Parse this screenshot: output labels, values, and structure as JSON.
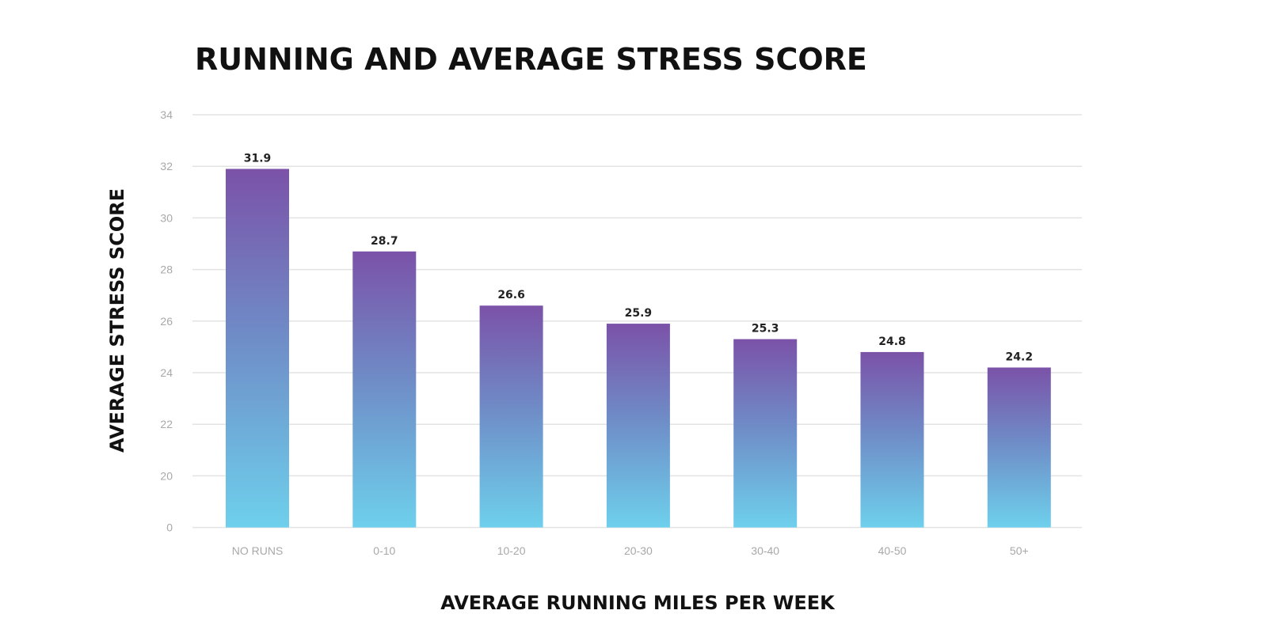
{
  "chart_data": {
    "type": "bar",
    "title": "RUNNING AND AVERAGE STRESS SCORE",
    "xlabel": "AVERAGE RUNNING MILES PER WEEK",
    "ylabel": "AVERAGE STRESS SCORE",
    "categories": [
      "NO RUNS",
      "0-10",
      "10-20",
      "20-30",
      "30-40",
      "40-50",
      "50+"
    ],
    "values": [
      31.9,
      28.7,
      26.6,
      25.9,
      25.3,
      24.8,
      24.2
    ],
    "value_labels": [
      "31.9",
      "28.7",
      "26.6",
      "25.9",
      "25.3",
      "24.8",
      "24.2"
    ],
    "y_ticks": [
      0,
      20,
      22,
      24,
      26,
      28,
      30,
      32,
      34
    ],
    "y_tick_labels": [
      "0",
      "20",
      "22",
      "24",
      "26",
      "28",
      "30",
      "32",
      "34"
    ],
    "ylim": [
      20,
      34
    ],
    "axis_break": "baseline labeled 0 placed one tick interval below 20",
    "grid": true,
    "legend": "none",
    "colors": {
      "bar_top": "#7b52a8",
      "bar_mid": "#6f8ac6",
      "bar_bottom": "#6ed0ec",
      "gridline": "#e3e3e3",
      "tick_text": "#a8a8a8",
      "title_text": "#111111"
    }
  }
}
